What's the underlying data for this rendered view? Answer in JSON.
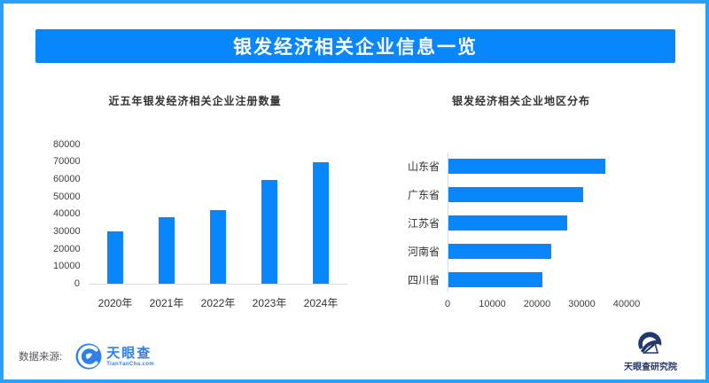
{
  "page": {
    "background": "#ffffff",
    "border_color": "#2aa2fc"
  },
  "header": {
    "title": "银发经济相关企业信息一览",
    "bg_color": "#0787fb",
    "text_color": "#ffffff"
  },
  "chart_data": [
    {
      "type": "bar",
      "orientation": "vertical",
      "title": "近五年银发经济相关企业注册数量",
      "categories": [
        "2020年",
        "2021年",
        "2022年",
        "2023年",
        "2024年"
      ],
      "values": [
        29800,
        38000,
        42000,
        59500,
        69800
      ],
      "ylim": [
        0,
        80000
      ],
      "yticks": [
        0,
        10000,
        20000,
        30000,
        40000,
        50000,
        60000,
        70000,
        80000
      ],
      "bar_color": "#0787fb",
      "grid": false,
      "legend": false
    },
    {
      "type": "bar",
      "orientation": "horizontal",
      "title": "银发经济相关企业地区分布",
      "categories": [
        "山东省",
        "广东省",
        "江苏省",
        "河南省",
        "四川省"
      ],
      "values": [
        35000,
        30000,
        26500,
        23000,
        21000
      ],
      "xlim": [
        0,
        40000
      ],
      "xticks": [
        0,
        10000,
        20000,
        30000,
        40000
      ],
      "bar_color": "#0787fb",
      "grid": false,
      "legend": false
    }
  ],
  "footer": {
    "source_label": "数据来源:",
    "brand": {
      "name": "天眼查",
      "domain": "TianYanCha.com",
      "color": "#2f80e8"
    },
    "institute": {
      "name": "天眼查研究院",
      "color": "#20386b"
    }
  }
}
